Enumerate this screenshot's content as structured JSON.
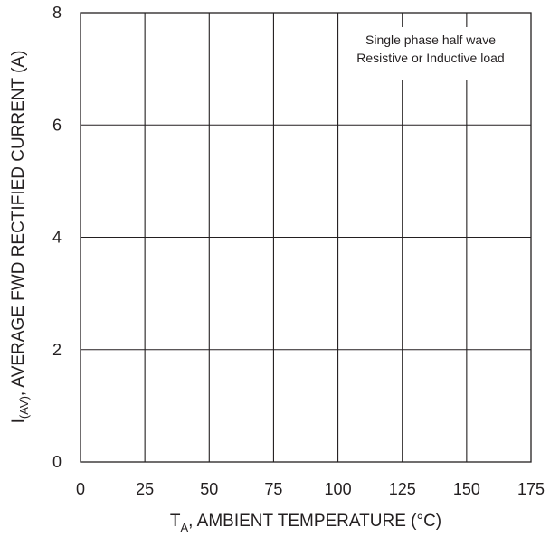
{
  "chart_data": {
    "type": "line",
    "title": "",
    "x_ticks": [
      "0",
      "25",
      "50",
      "75",
      "100",
      "125",
      "150",
      "175"
    ],
    "y_ticks": [
      "0",
      "2",
      "4",
      "6",
      "8"
    ],
    "xlim": [
      0,
      175
    ],
    "ylim": [
      0,
      8
    ],
    "xlabel": {
      "prefix": "T",
      "subscript": "A",
      "suffix": ", AMBIENT TEMPERATURE (°C)"
    },
    "ylabel": {
      "prefix": "I",
      "subscript": "(AV)",
      "suffix": ", AVERAGE FWD RECTIFIED CURRENT (A)"
    },
    "annotation": [
      "Single phase half wave",
      "Resistive or Inductive load"
    ],
    "grid": true,
    "series": []
  }
}
